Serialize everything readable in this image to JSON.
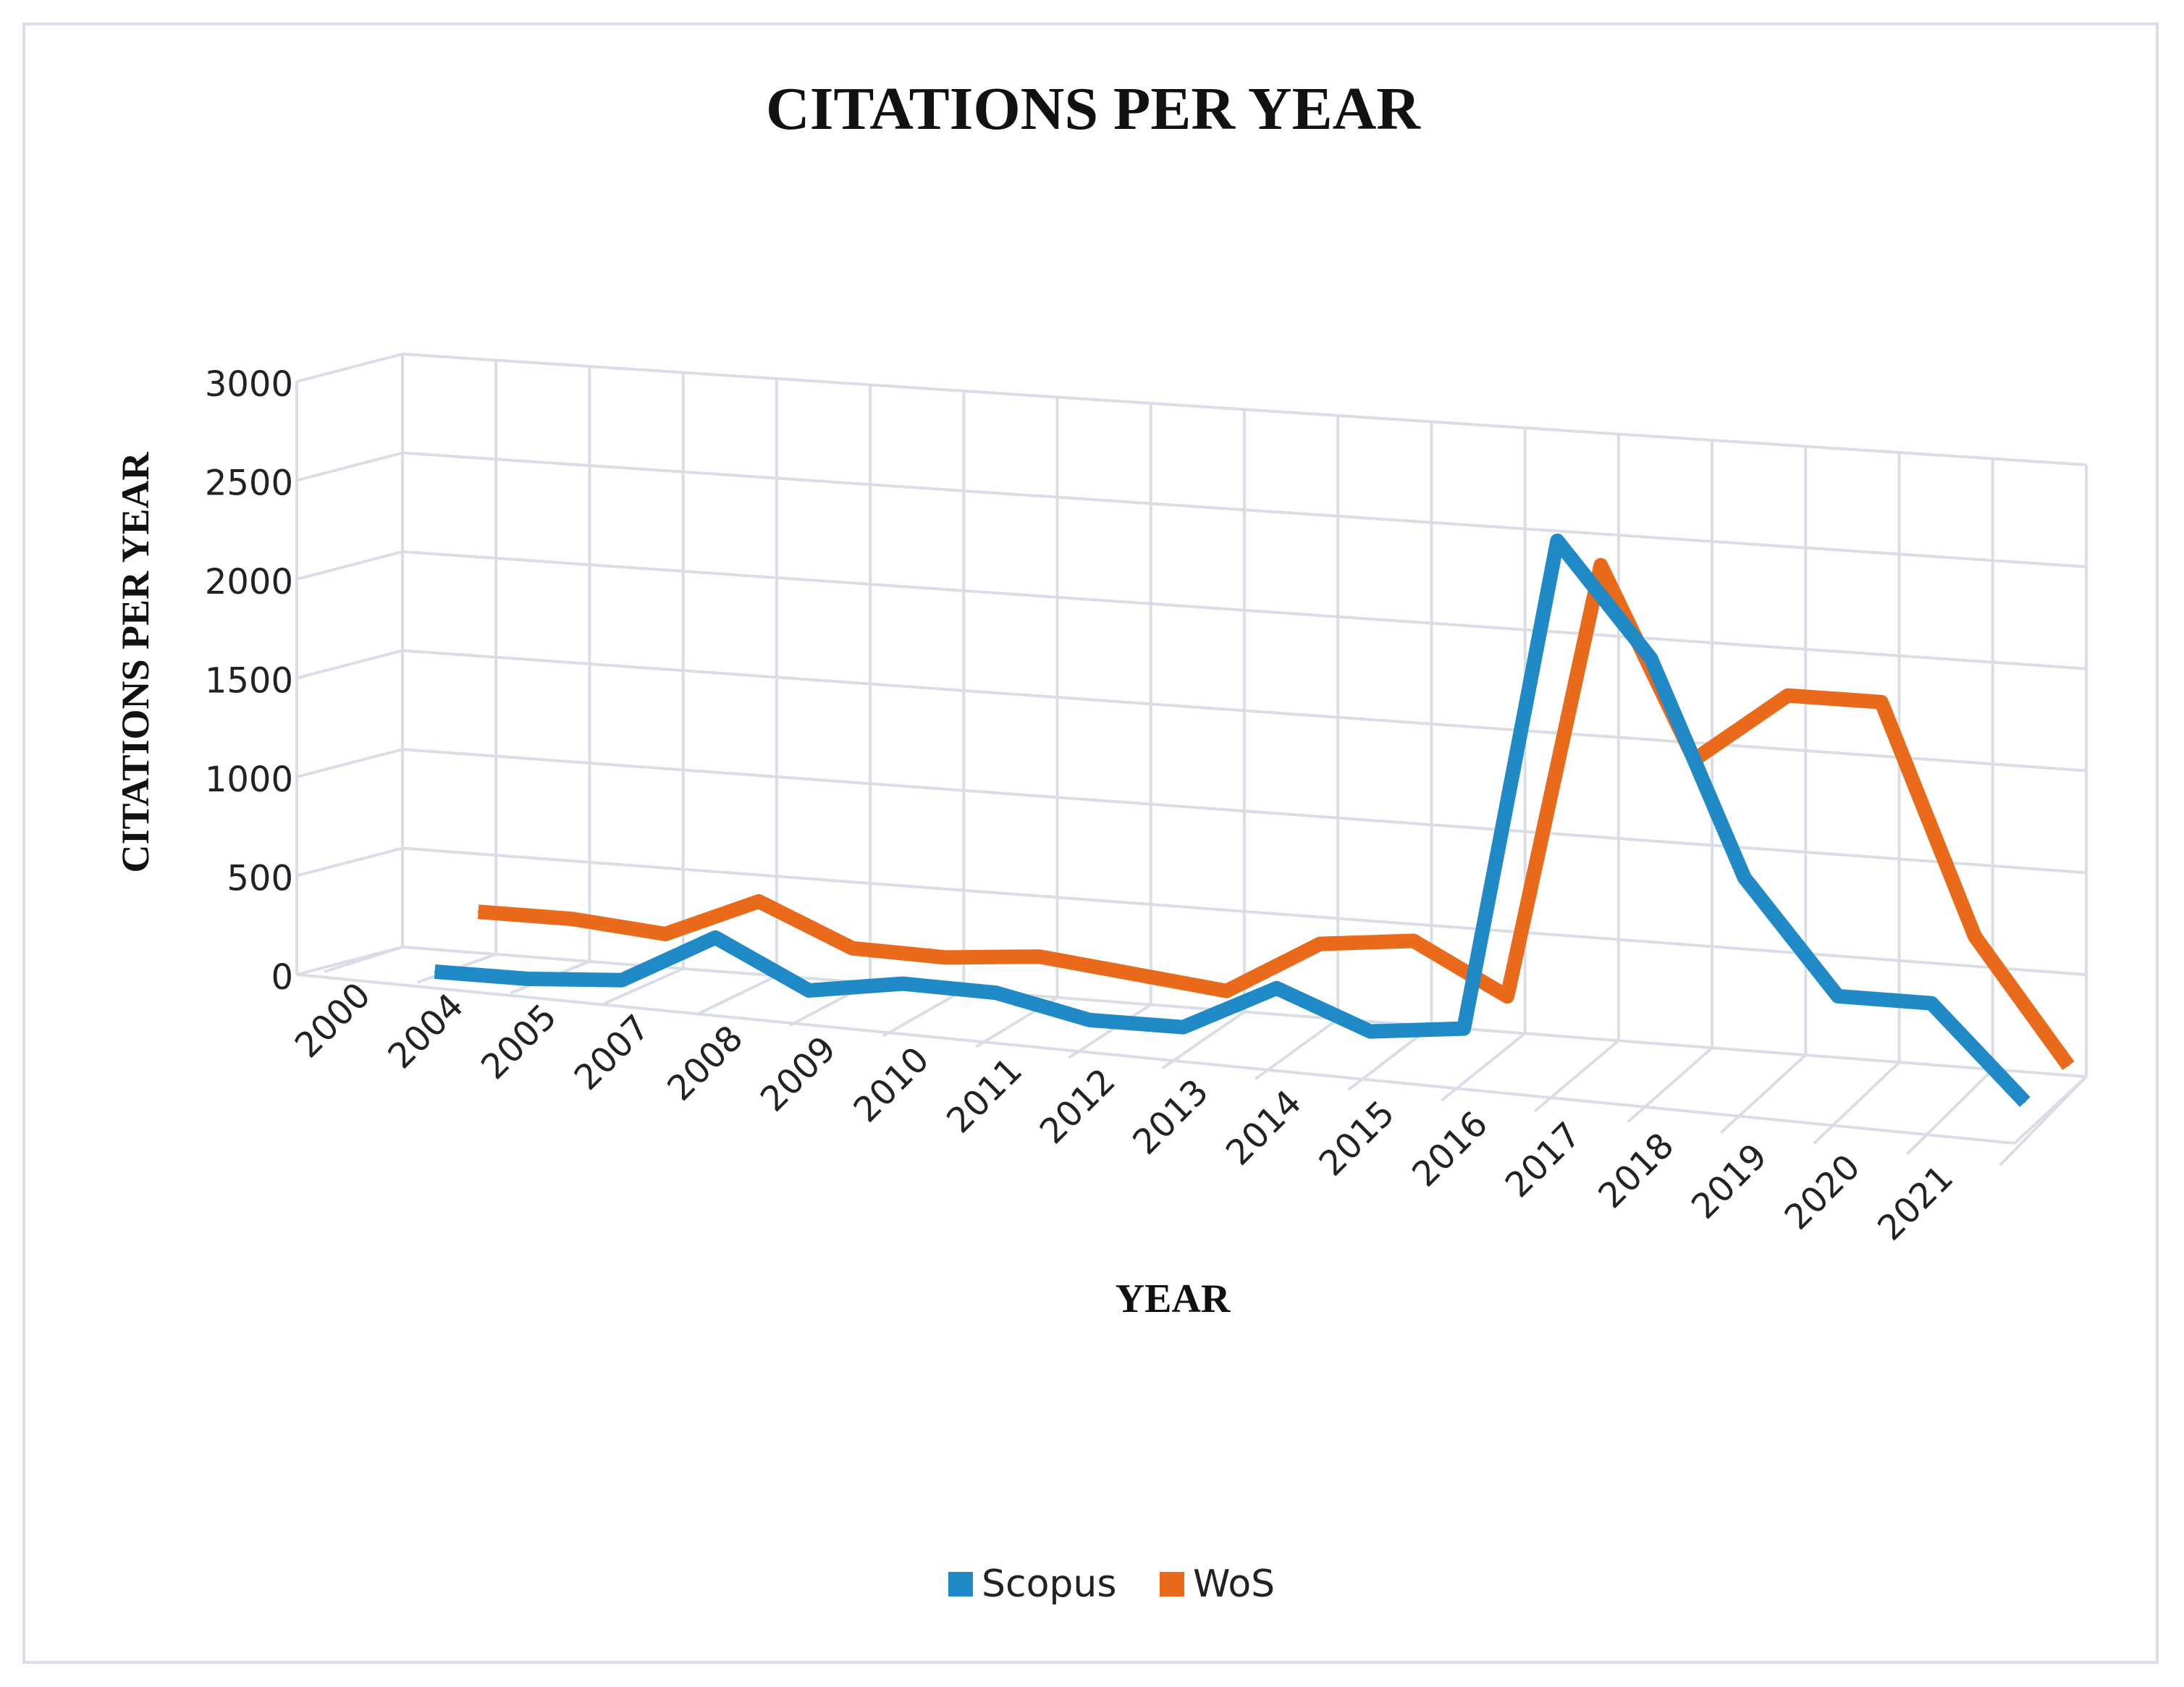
{
  "chart_data": {
    "type": "line",
    "title": "CITATIONS PER YEAR",
    "xlabel": "YEAR",
    "ylabel": "CITATIONS PER YEAR",
    "categories": [
      "2000",
      "2004",
      "2005",
      "2007",
      "2008",
      "2009",
      "2010",
      "2011",
      "2012",
      "2013",
      "2014",
      "2015",
      "2016",
      "2017",
      "2018",
      "2019",
      "2020",
      "2021"
    ],
    "yticks": [
      "0",
      "500",
      "1000",
      "1500",
      "2000",
      "2500",
      "3000"
    ],
    "ylim": [
      0,
      3000
    ],
    "grid": true,
    "legend_position": "bottom",
    "series": [
      {
        "name": "Scopus",
        "color": "#1f8ac6",
        "values": [
          40,
          40,
          70,
          320,
          90,
          160,
          150,
          50,
          50,
          280,
          100,
          150,
          2600,
          2050,
          1000,
          450,
          450,
          0
        ]
      },
      {
        "name": "WoS",
        "color": "#ea6a1c",
        "values": [
          160,
          160,
          120,
          320,
          120,
          110,
          150,
          100,
          50,
          320,
          370,
          130,
          2300,
          1370,
          1720,
          1720,
          600,
          0
        ]
      }
    ]
  }
}
